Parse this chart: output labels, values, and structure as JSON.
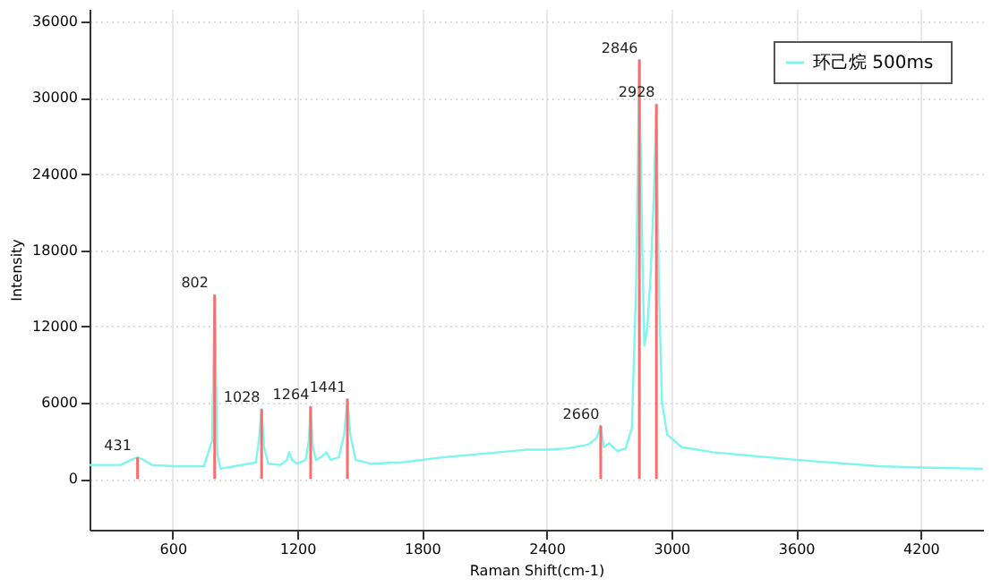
{
  "chart_data": {
    "type": "line",
    "xlabel": "Raman Shift(cm-1)",
    "ylabel": "Intensity",
    "xlim": [
      200,
      4500
    ],
    "ylim": [
      -4000,
      37000
    ],
    "xticks": [
      600,
      1200,
      1800,
      2400,
      3000,
      3600,
      4200
    ],
    "yticks": [
      0,
      6000,
      12000,
      18000,
      24000,
      30000,
      36000
    ],
    "grid": true,
    "legend": "top right",
    "series": [
      {
        "name": "环己烷  500ms",
        "color": "#7ff5f0",
        "x": [
          200,
          350,
          400,
          431,
          460,
          500,
          600,
          750,
          790,
          802,
          815,
          830,
          900,
          1000,
          1015,
          1028,
          1040,
          1060,
          1120,
          1150,
          1160,
          1175,
          1200,
          1240,
          1255,
          1264,
          1275,
          1290,
          1320,
          1340,
          1360,
          1400,
          1425,
          1441,
          1455,
          1480,
          1550,
          1700,
          1900,
          2100,
          2300,
          2400,
          2500,
          2600,
          2640,
          2660,
          2675,
          2700,
          2740,
          2780,
          2810,
          2830,
          2846,
          2860,
          2870,
          2885,
          2900,
          2915,
          2928,
          2940,
          2955,
          2980,
          3050,
          3200,
          3600,
          4000,
          4200,
          4500
        ],
        "values": [
          1100,
          1100,
          1500,
          1700,
          1500,
          1100,
          1000,
          1000,
          3000,
          14500,
          2000,
          800,
          1000,
          1300,
          3000,
          5500,
          2500,
          1200,
          1100,
          1500,
          2100,
          1500,
          1200,
          1500,
          3000,
          5700,
          2500,
          1500,
          1800,
          2100,
          1500,
          1700,
          3500,
          6300,
          3500,
          1500,
          1200,
          1300,
          1700,
          2000,
          2300,
          2300,
          2400,
          2700,
          3200,
          4200,
          2500,
          2800,
          2200,
          2400,
          4000,
          15000,
          33000,
          18000,
          10500,
          12000,
          16000,
          22000,
          29500,
          15000,
          6000,
          3500,
          2500,
          2100,
          1500,
          1000,
          900,
          800
        ]
      },
      {
        "color": "#ff6b6b",
        "type": "bar",
        "x": [
          431,
          802,
          1028,
          1264,
          1441,
          2660,
          2846,
          2928
        ],
        "values": [
          1700,
          14500,
          5500,
          5700,
          6300,
          4200,
          33000,
          29500
        ]
      }
    ],
    "annotations": [
      {
        "text": "431",
        "x": 431,
        "y": 1700
      },
      {
        "text": "802",
        "x": 802,
        "y": 14500
      },
      {
        "text": "1028",
        "x": 1028,
        "y": 5500
      },
      {
        "text": "1264",
        "x": 1264,
        "y": 5700
      },
      {
        "text": "1441",
        "x": 1441,
        "y": 6300
      },
      {
        "text": "2660",
        "x": 2660,
        "y": 4200
      },
      {
        "text": "2846",
        "x": 2846,
        "y": 33000
      },
      {
        "text": "2928",
        "x": 2928,
        "y": 29500
      }
    ]
  }
}
